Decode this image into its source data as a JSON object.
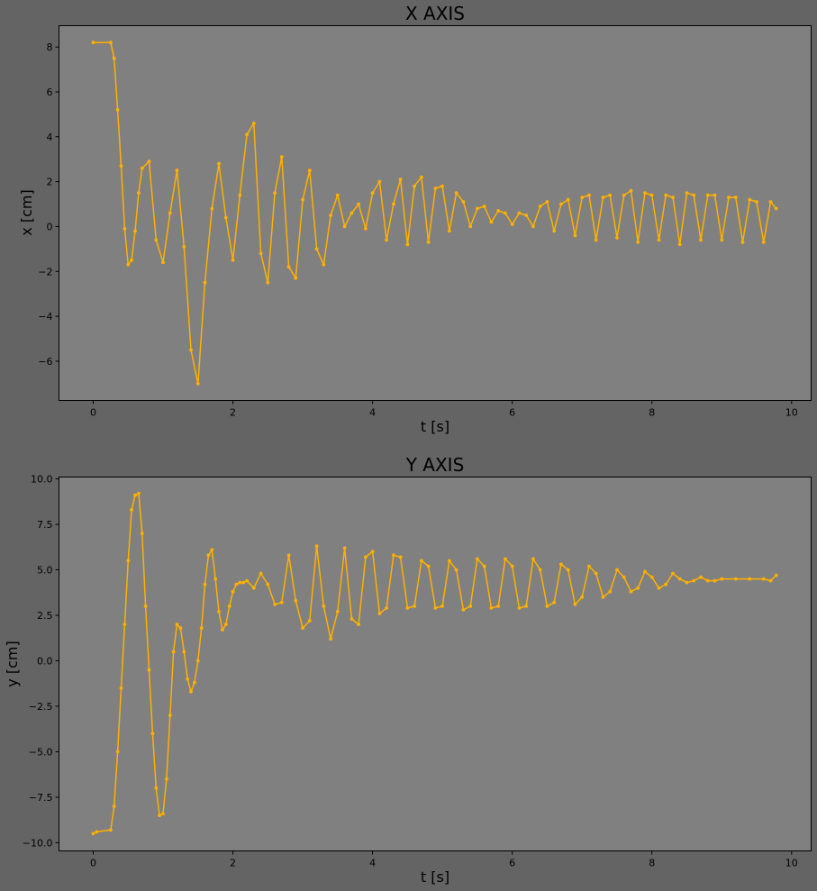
{
  "colors": {
    "figure_background": "#646464",
    "axes_background": "#808080",
    "series": "#ffb000"
  },
  "chart_data": [
    {
      "type": "line",
      "title": "X AXIS",
      "xlabel": "t [s]",
      "ylabel": "x [cm]",
      "xlim": [
        -0.49,
        10.28
      ],
      "ylim": [
        -7.75,
        8.95
      ],
      "xticks": [
        0,
        2,
        4,
        6,
        8,
        10
      ],
      "xtick_labels": [
        "0",
        "2",
        "4",
        "6",
        "8",
        "10"
      ],
      "yticks": [
        -6,
        -4,
        -2,
        0,
        2,
        4,
        6,
        8
      ],
      "ytick_labels": [
        "−6",
        "−4",
        "−2",
        "0",
        "2",
        "4",
        "6",
        "8"
      ],
      "grid": false,
      "marker": "point",
      "series": [
        {
          "color": "#ffb000",
          "x": [
            0.0,
            0.25,
            0.3,
            0.35,
            0.4,
            0.45,
            0.5,
            0.55,
            0.6,
            0.65,
            0.7,
            0.8,
            0.9,
            1.0,
            1.1,
            1.2,
            1.3,
            1.4,
            1.5,
            1.6,
            1.7,
            1.8,
            1.9,
            2.0,
            2.1,
            2.2,
            2.3,
            2.4,
            2.5,
            2.6,
            2.7,
            2.8,
            2.9,
            3.0,
            3.1,
            3.2,
            3.3,
            3.4,
            3.5,
            3.6,
            3.7,
            3.8,
            3.9,
            4.0,
            4.1,
            4.2,
            4.3,
            4.4,
            4.5,
            4.6,
            4.7,
            4.8,
            4.9,
            5.0,
            5.1,
            5.2,
            5.3,
            5.4,
            5.5,
            5.6,
            5.7,
            5.8,
            5.9,
            6.0,
            6.1,
            6.2,
            6.3,
            6.4,
            6.5,
            6.6,
            6.7,
            6.8,
            6.9,
            7.0,
            7.1,
            7.2,
            7.3,
            7.4,
            7.5,
            7.6,
            7.7,
            7.8,
            7.9,
            8.0,
            8.1,
            8.2,
            8.3,
            8.4,
            8.5,
            8.6,
            8.7,
            8.8,
            8.9,
            9.0,
            9.1,
            9.2,
            9.3,
            9.4,
            9.5,
            9.6,
            9.7,
            9.78
          ],
          "y": [
            8.2,
            8.2,
            7.5,
            5.2,
            2.7,
            -0.1,
            -1.7,
            -1.5,
            -0.2,
            1.5,
            2.6,
            2.9,
            -0.6,
            -1.6,
            0.6,
            2.5,
            -0.9,
            -5.5,
            -7.0,
            -2.5,
            0.8,
            2.8,
            0.4,
            -1.5,
            1.4,
            4.1,
            4.6,
            -1.2,
            -2.5,
            1.5,
            3.1,
            -1.8,
            -2.3,
            1.2,
            2.5,
            -1.0,
            -1.7,
            0.5,
            1.4,
            0.0,
            0.6,
            1.0,
            -0.1,
            1.5,
            2.0,
            -0.6,
            1.0,
            2.1,
            -0.8,
            1.8,
            2.2,
            -0.7,
            1.7,
            1.8,
            -0.2,
            1.5,
            1.1,
            0.0,
            0.8,
            0.9,
            0.2,
            0.7,
            0.6,
            0.1,
            0.6,
            0.5,
            0.0,
            0.9,
            1.1,
            -0.2,
            1.0,
            1.2,
            -0.4,
            1.3,
            1.4,
            -0.6,
            1.3,
            1.4,
            -0.5,
            1.4,
            1.6,
            -0.7,
            1.5,
            1.4,
            -0.6,
            1.4,
            1.3,
            -0.8,
            1.5,
            1.4,
            -0.6,
            1.4,
            1.4,
            -0.6,
            1.3,
            1.3,
            -0.7,
            1.2,
            1.1,
            -0.7,
            1.1,
            0.8
          ]
        }
      ]
    },
    {
      "type": "line",
      "title": "Y AXIS",
      "xlabel": "t [s]",
      "ylabel": "y [cm]",
      "xlim": [
        -0.49,
        10.28
      ],
      "ylim": [
        -10.45,
        10.1
      ],
      "xticks": [
        0,
        2,
        4,
        6,
        8,
        10
      ],
      "xtick_labels": [
        "0",
        "2",
        "4",
        "6",
        "8",
        "10"
      ],
      "yticks": [
        -10.0,
        -7.5,
        -5.0,
        -2.5,
        0.0,
        2.5,
        5.0,
        7.5,
        10.0
      ],
      "ytick_labels": [
        "−10.0",
        "−7.5",
        "−5.0",
        "−2.5",
        "0.0",
        "2.5",
        "5.0",
        "7.5",
        "10.0"
      ],
      "grid": false,
      "marker": "point",
      "series": [
        {
          "color": "#ffb000",
          "x": [
            0.0,
            0.05,
            0.25,
            0.3,
            0.35,
            0.4,
            0.45,
            0.5,
            0.55,
            0.6,
            0.65,
            0.7,
            0.75,
            0.8,
            0.85,
            0.9,
            0.95,
            1.0,
            1.05,
            1.1,
            1.15,
            1.2,
            1.25,
            1.3,
            1.35,
            1.4,
            1.45,
            1.5,
            1.55,
            1.6,
            1.65,
            1.7,
            1.75,
            1.8,
            1.85,
            1.9,
            1.95,
            2.0,
            2.05,
            2.1,
            2.15,
            2.2,
            2.3,
            2.4,
            2.5,
            2.6,
            2.7,
            2.8,
            2.9,
            3.0,
            3.1,
            3.2,
            3.3,
            3.4,
            3.5,
            3.6,
            3.7,
            3.8,
            3.9,
            4.0,
            4.1,
            4.2,
            4.3,
            4.4,
            4.5,
            4.6,
            4.7,
            4.8,
            4.9,
            5.0,
            5.1,
            5.2,
            5.3,
            5.4,
            5.5,
            5.6,
            5.7,
            5.8,
            5.9,
            6.0,
            6.1,
            6.2,
            6.3,
            6.4,
            6.5,
            6.6,
            6.7,
            6.8,
            6.9,
            7.0,
            7.1,
            7.2,
            7.3,
            7.4,
            7.5,
            7.6,
            7.7,
            7.8,
            7.9,
            8.0,
            8.1,
            8.2,
            8.3,
            8.4,
            8.5,
            8.6,
            8.7,
            8.8,
            8.9,
            9.0,
            9.2,
            9.4,
            9.6,
            9.7,
            9.78
          ],
          "y": [
            -9.5,
            -9.4,
            -9.3,
            -8.0,
            -5.0,
            -1.5,
            2.0,
            5.5,
            8.3,
            9.1,
            9.2,
            7.0,
            3.0,
            -0.5,
            -4.0,
            -7.0,
            -8.5,
            -8.4,
            -6.5,
            -3.0,
            0.5,
            2.0,
            1.8,
            0.5,
            -1.0,
            -1.7,
            -1.2,
            0.0,
            1.8,
            4.2,
            5.8,
            6.1,
            4.5,
            2.7,
            1.7,
            2.0,
            3.0,
            3.8,
            4.2,
            4.3,
            4.3,
            4.4,
            4.0,
            4.8,
            4.2,
            3.1,
            3.2,
            5.8,
            3.3,
            1.8,
            2.2,
            6.3,
            3.0,
            1.2,
            2.7,
            6.2,
            2.3,
            2.0,
            5.7,
            6.0,
            2.6,
            2.9,
            5.8,
            5.7,
            2.9,
            3.0,
            5.5,
            5.2,
            2.9,
            3.0,
            5.5,
            5.0,
            2.8,
            3.0,
            5.6,
            5.2,
            2.9,
            3.0,
            5.6,
            5.2,
            2.9,
            3.0,
            5.6,
            5.0,
            3.0,
            3.2,
            5.3,
            5.0,
            3.1,
            3.5,
            5.2,
            4.8,
            3.5,
            3.8,
            5.0,
            4.6,
            3.8,
            4.0,
            4.9,
            4.6,
            4.0,
            4.2,
            4.8,
            4.5,
            4.3,
            4.4,
            4.6,
            4.4,
            4.4,
            4.5,
            4.5,
            4.5,
            4.5,
            4.4,
            4.7
          ]
        }
      ]
    }
  ]
}
